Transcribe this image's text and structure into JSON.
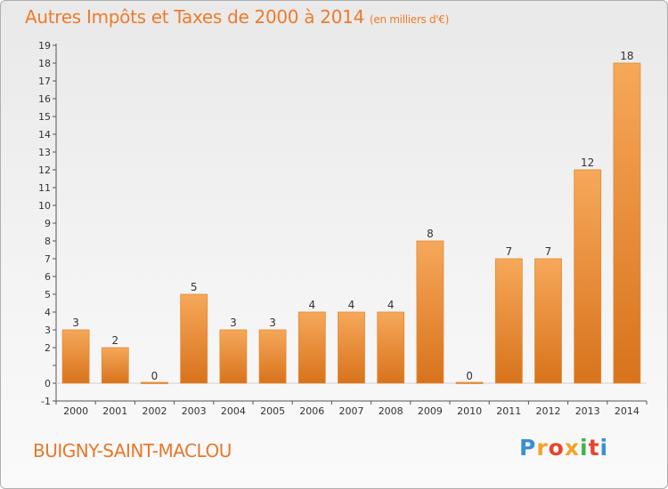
{
  "title": "Autres Impôts et Taxes de 2000 à 2014",
  "subtitle": "(en milliers d'€)",
  "commune": "BUIGNY-SAINT-MACLOU",
  "logo": {
    "letters": [
      "P",
      "r",
      "o",
      "x",
      "i",
      "t",
      "i"
    ],
    "colors": [
      "#3a8fd6",
      "#f4a32b",
      "#e8452f",
      "#f4a32b",
      "#3fb34a",
      "#e8452f",
      "#3a8fd6"
    ]
  },
  "colors": {
    "bar_top": "#f6a85a",
    "bar_bottom": "#d8731c",
    "bar_edge": "#e38a34",
    "text": "#333333",
    "title": "#ee7b2a",
    "grid": "#dddddd"
  },
  "chart_data": {
    "type": "bar",
    "categories": [
      "2000",
      "2001",
      "2002",
      "2003",
      "2004",
      "2005",
      "2006",
      "2007",
      "2008",
      "2009",
      "2010",
      "2011",
      "2012",
      "2013",
      "2014"
    ],
    "values": [
      3,
      2,
      0,
      5,
      3,
      3,
      4,
      4,
      4,
      8,
      0,
      7,
      7,
      12,
      18
    ],
    "data_labels": [
      "3",
      "2",
      "0",
      "5",
      "3",
      "3",
      "4",
      "4",
      "4",
      "8",
      "0",
      "7",
      "7",
      "12",
      "18"
    ],
    "yticks": [
      -1,
      0,
      1,
      2,
      3,
      4,
      5,
      6,
      7,
      8,
      9,
      10,
      11,
      12,
      13,
      14,
      15,
      16,
      17,
      18,
      19
    ],
    "ytick_labels": [
      "-1",
      "0",
      "",
      "2",
      "3",
      "4",
      "5",
      "6",
      "7",
      "8",
      "9",
      "10",
      "11",
      "12",
      "13",
      "14",
      "15",
      "16",
      "17",
      "18",
      "19"
    ],
    "ylim": [
      -1,
      19
    ],
    "grid": false,
    "legend": "none"
  }
}
